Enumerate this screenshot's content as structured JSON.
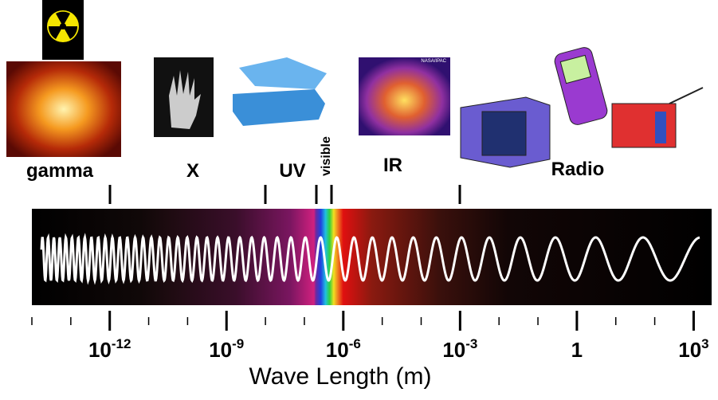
{
  "bands": [
    {
      "label": "gamma"
    },
    {
      "label": "X"
    },
    {
      "label": "UV"
    },
    {
      "label": "visible"
    },
    {
      "label": "IR"
    },
    {
      "label": "Radio"
    }
  ],
  "axis": {
    "title": "Wave Length (m)",
    "ticks": [
      {
        "base": "10",
        "exponent": "-12"
      },
      {
        "base": "10",
        "exponent": "-9"
      },
      {
        "base": "10",
        "exponent": "-6"
      },
      {
        "base": "10",
        "exponent": "-3"
      },
      {
        "base": "1"
      },
      {
        "base": "10",
        "exponent": "3"
      }
    ]
  },
  "image_credit": "NASA/IPAC"
}
